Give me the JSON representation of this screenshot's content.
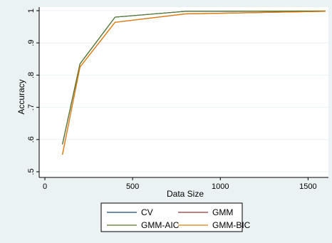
{
  "chart_data": {
    "type": "line",
    "xlabel": "Data Size",
    "ylabel": "Accuracy",
    "xlim": [
      0,
      1600
    ],
    "ylim": [
      0.5,
      1.0
    ],
    "x_ticks": [
      0,
      500,
      1000,
      1500
    ],
    "x_tick_labels": [
      "0",
      "500",
      "1000",
      "1500"
    ],
    "y_ticks": [
      0.5,
      0.6,
      0.7,
      0.8,
      0.9,
      1.0
    ],
    "y_tick_labels": [
      ".5",
      ".6",
      ".7",
      ".8",
      ".9",
      "1"
    ],
    "grid": "horizontal",
    "legend_position": "bottom",
    "x": [
      100,
      200,
      400,
      800,
      1600
    ],
    "series": [
      {
        "name": "CV",
        "color": "#1a476f",
        "values": [
          0.585,
          0.835,
          0.98,
          0.998,
          0.999
        ]
      },
      {
        "name": "GMM",
        "color": "#90353b",
        "values": [
          0.553,
          0.825,
          0.964,
          0.99,
          0.998
        ]
      },
      {
        "name": "GMM-AIC",
        "color": "#55752f",
        "values": [
          0.585,
          0.835,
          0.98,
          0.998,
          0.999
        ]
      },
      {
        "name": "GMM-BIC",
        "color": "#e37e00",
        "values": [
          0.553,
          0.825,
          0.964,
          0.99,
          0.998
        ]
      }
    ]
  }
}
